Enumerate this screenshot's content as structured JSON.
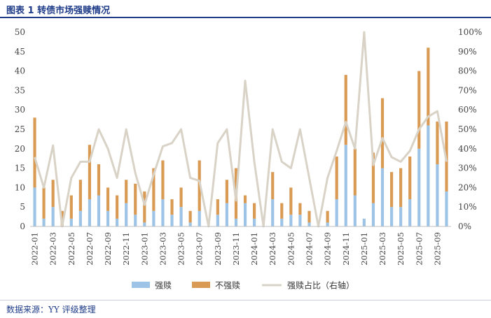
{
  "title": "图表 1 转债市场强赎情况",
  "source": "数据来源：YY 评级整理",
  "colors": {
    "strong": "#9dc3e6",
    "notstrong": "#d99a54",
    "ratio": "#d9d3c7",
    "axis_text": "#444444",
    "title": "#1f3c88"
  },
  "chart_data": {
    "type": "bar",
    "stacked": true,
    "categories": [
      "2022-01",
      "2022-02",
      "2022-03",
      "2022-04",
      "2022-05",
      "2022-06",
      "2022-07",
      "2022-08",
      "2022-09",
      "2022-10",
      "2022-11",
      "2022-12",
      "2023-01",
      "2023-02",
      "2023-03",
      "2023-04",
      "2023-05",
      "2023-06",
      "2023-07",
      "2023-08",
      "2023-09",
      "2023-10",
      "2023-11",
      "2023-12",
      "2024-01",
      "2024-02",
      "2024-03",
      "2024-04",
      "2024-05",
      "2024-06",
      "2024-07",
      "2024-08",
      "2024-09",
      "2024-10",
      "2024-11",
      "2024-12",
      "2025-01",
      "2025-02",
      "2025-03",
      "2025-04",
      "2025-05",
      "2025-06",
      "2025-07",
      "2025-08",
      "2025-09",
      "2025-10"
    ],
    "x_tick_labels": [
      "2022-01",
      "2022-03",
      "2022-05",
      "2022-07",
      "2022-09",
      "2022-11",
      "2023-01",
      "2023-03",
      "2023-05",
      "2023-07",
      "2023-09",
      "2023-11",
      "2024-01",
      "2024-03",
      "2024-05",
      "2024-07",
      "2024-09",
      "2024-11",
      "2025-01",
      "2025-03",
      "2025-05",
      "2025-07",
      "2025-09"
    ],
    "series": [
      {
        "name": "强赎",
        "axis": "left",
        "kind": "bar",
        "values": [
          10,
          2,
          5,
          0,
          2,
          4,
          7,
          8,
          4,
          2,
          6,
          3,
          1,
          4,
          7,
          3,
          5,
          1,
          4,
          0,
          3,
          6,
          2,
          6,
          2,
          0,
          7,
          2,
          3,
          3,
          1,
          0,
          1,
          7,
          21,
          8,
          2,
          6,
          15,
          5,
          5,
          7,
          20,
          26,
          16,
          9
        ]
      },
      {
        "name": "不强赎",
        "axis": "left",
        "kind": "bar",
        "values": [
          18,
          8,
          7,
          4,
          6,
          8,
          14,
          8,
          6,
          6,
          6,
          8,
          8,
          11,
          10,
          4,
          5,
          3,
          13,
          0,
          4,
          6,
          13,
          2,
          4,
          0,
          7,
          4,
          7,
          3,
          3,
          0,
          3,
          11,
          18,
          12,
          0,
          13,
          18,
          9,
          10,
          11,
          20,
          20,
          11,
          18
        ]
      },
      {
        "name": "强赎占比（右轴）",
        "axis": "right",
        "kind": "line",
        "values": [
          0.357,
          0.2,
          0.417,
          0.0,
          0.25,
          0.333,
          0.333,
          0.5,
          0.4,
          0.25,
          0.5,
          0.273,
          0.111,
          0.267,
          0.412,
          0.429,
          0.5,
          0.25,
          0.235,
          0.0,
          0.429,
          0.5,
          0.133,
          0.75,
          0.333,
          0.0,
          0.5,
          0.333,
          0.3,
          0.5,
          0.25,
          0.0,
          0.25,
          0.389,
          0.538,
          0.4,
          1.0,
          0.316,
          0.455,
          0.357,
          0.333,
          0.389,
          0.5,
          0.565,
          0.593,
          0.333
        ]
      }
    ],
    "y_left": {
      "min": 0,
      "max": 50,
      "ticks": [
        "0",
        "5",
        "10",
        "15",
        "20",
        "25",
        "30",
        "35",
        "40",
        "45",
        "50"
      ]
    },
    "y_right": {
      "min": 0,
      "max": 1,
      "ticks": [
        "0%",
        "10%",
        "20%",
        "30%",
        "40%",
        "50%",
        "60%",
        "70%",
        "80%",
        "90%",
        "100%"
      ]
    },
    "legend": {
      "position": "bottom",
      "items": [
        "强赎",
        "不强赎",
        "强赎占比（右轴）"
      ]
    },
    "grid": false
  }
}
